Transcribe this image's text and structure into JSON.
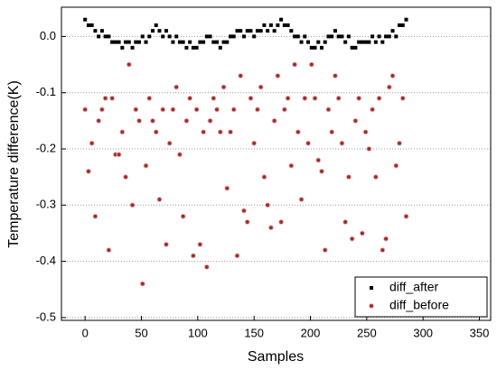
{
  "chart_data": {
    "type": "scatter",
    "x_label": "Samples",
    "y_label": "Temperature difference(K)",
    "x": [
      0,
      3,
      6,
      9,
      12,
      15,
      18,
      21,
      24,
      27,
      30,
      33,
      36,
      39,
      42,
      45,
      48,
      51,
      54,
      57,
      60,
      63,
      66,
      69,
      72,
      75,
      78,
      81,
      84,
      87,
      90,
      93,
      96,
      99,
      102,
      105,
      108,
      111,
      114,
      117,
      120,
      123,
      126,
      129,
      132,
      135,
      138,
      141,
      144,
      147,
      150,
      153,
      156,
      159,
      162,
      165,
      168,
      171,
      174,
      177,
      180,
      183,
      186,
      189,
      192,
      195,
      198,
      201,
      204,
      207,
      210,
      213,
      216,
      219,
      222,
      225,
      228,
      231,
      234,
      237,
      240,
      243,
      246,
      249,
      252,
      255,
      258,
      261,
      264,
      267,
      270,
      273,
      276,
      279,
      282,
      285
    ],
    "series": [
      {
        "name": "diff_after",
        "color": "#000000",
        "marker": "square",
        "values": [
          0.03,
          0.02,
          0.02,
          0.01,
          0.0,
          0.01,
          0.0,
          0.0,
          -0.01,
          -0.01,
          -0.01,
          -0.02,
          -0.01,
          -0.01,
          -0.02,
          -0.01,
          -0.01,
          0.0,
          -0.01,
          0.0,
          0.01,
          0.02,
          0.01,
          0.0,
          0.01,
          0.0,
          -0.01,
          0.0,
          -0.01,
          -0.01,
          -0.02,
          -0.01,
          -0.02,
          -0.02,
          -0.01,
          -0.01,
          0.0,
          0.0,
          -0.01,
          -0.01,
          -0.02,
          -0.01,
          -0.01,
          0.0,
          0.0,
          0.01,
          0.01,
          0.0,
          0.01,
          0.01,
          0.0,
          0.01,
          0.01,
          0.02,
          0.01,
          0.02,
          0.01,
          0.02,
          0.03,
          0.02,
          0.02,
          0.01,
          0.0,
          0.0,
          -0.01,
          0.0,
          -0.01,
          -0.02,
          -0.02,
          -0.01,
          -0.02,
          -0.01,
          0.0,
          0.0,
          0.01,
          0.0,
          0.0,
          -0.01,
          0.0,
          -0.02,
          -0.02,
          -0.01,
          -0.01,
          -0.01,
          -0.01,
          0.0,
          -0.01,
          0.0,
          -0.01,
          0.0,
          0.0,
          0.01,
          0.0,
          0.02,
          0.02,
          0.03
        ]
      },
      {
        "name": "diff_before",
        "color": "#9b3216",
        "marker": "circle",
        "values": [
          -0.13,
          -0.24,
          -0.19,
          -0.32,
          -0.15,
          -0.13,
          -0.11,
          -0.38,
          -0.11,
          -0.21,
          -0.21,
          -0.17,
          -0.25,
          -0.05,
          -0.3,
          -0.13,
          -0.15,
          -0.44,
          -0.23,
          -0.11,
          -0.15,
          -0.17,
          -0.29,
          -0.13,
          -0.37,
          -0.19,
          -0.13,
          -0.09,
          -0.21,
          -0.32,
          -0.15,
          -0.11,
          -0.39,
          -0.13,
          -0.37,
          -0.17,
          -0.41,
          -0.15,
          -0.11,
          -0.13,
          -0.17,
          -0.09,
          -0.27,
          -0.17,
          -0.13,
          -0.39,
          -0.07,
          -0.31,
          -0.33,
          -0.11,
          -0.19,
          -0.13,
          -0.09,
          -0.25,
          -0.3,
          -0.34,
          -0.15,
          -0.07,
          -0.33,
          -0.13,
          -0.11,
          -0.23,
          -0.05,
          -0.17,
          -0.29,
          -0.11,
          -0.19,
          -0.05,
          -0.11,
          -0.22,
          -0.24,
          -0.38,
          -0.13,
          -0.17,
          -0.07,
          -0.11,
          -0.19,
          -0.33,
          -0.25,
          -0.36,
          -0.15,
          -0.11,
          -0.35,
          -0.17,
          -0.2,
          -0.13,
          -0.25,
          -0.11,
          -0.38,
          -0.36,
          -0.09,
          -0.07,
          -0.23,
          -0.19,
          -0.11,
          -0.32
        ]
      }
    ],
    "xlim": [
      -21,
      360
    ],
    "ylim": [
      -0.505,
      0.052
    ],
    "xticks": [
      0,
      50,
      100,
      150,
      200,
      250,
      300,
      350
    ],
    "yticks": [
      -0.5,
      -0.4,
      -0.3,
      -0.2,
      -0.1,
      {
        "value": 0,
        "label": "0.0"
      }
    ],
    "grid": true,
    "legend": "lower right"
  }
}
